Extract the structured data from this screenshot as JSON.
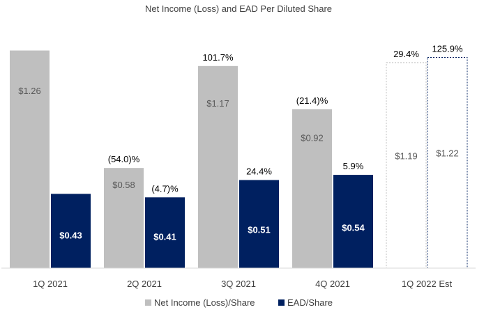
{
  "chart_data": {
    "type": "bar",
    "title": "Net Income (Loss) and EAD Per Diluted Share",
    "categories": [
      "1Q 2021",
      "2Q 2021",
      "3Q 2021",
      "4Q 2021",
      "1Q 2022 Est"
    ],
    "series": [
      {
        "name": "Net Income (Loss)/Share",
        "color": "#bfbfbf",
        "values": [
          1.26,
          0.58,
          1.17,
          0.92,
          1.19
        ],
        "labels": [
          "$1.26",
          "$0.58",
          "$1.17",
          "$0.92",
          "$1.19"
        ],
        "pct_labels": [
          "",
          "(54.0)%",
          "101.7%",
          "(21.4)%",
          "29.4%"
        ]
      },
      {
        "name": "EAD/Share",
        "color": "#002060",
        "values": [
          0.43,
          0.41,
          0.51,
          0.54,
          1.22
        ],
        "labels": [
          "$0.43",
          "$0.41",
          "$0.51",
          "$0.54",
          "$1.22"
        ],
        "pct_labels": [
          "",
          "(4.7)%",
          "24.4%",
          "5.9%",
          "125.9%"
        ]
      }
    ],
    "estimate_category": "1Q 2022 Est",
    "ylim": [
      0,
      1.3
    ],
    "grid": false,
    "legend_position": "bottom"
  }
}
